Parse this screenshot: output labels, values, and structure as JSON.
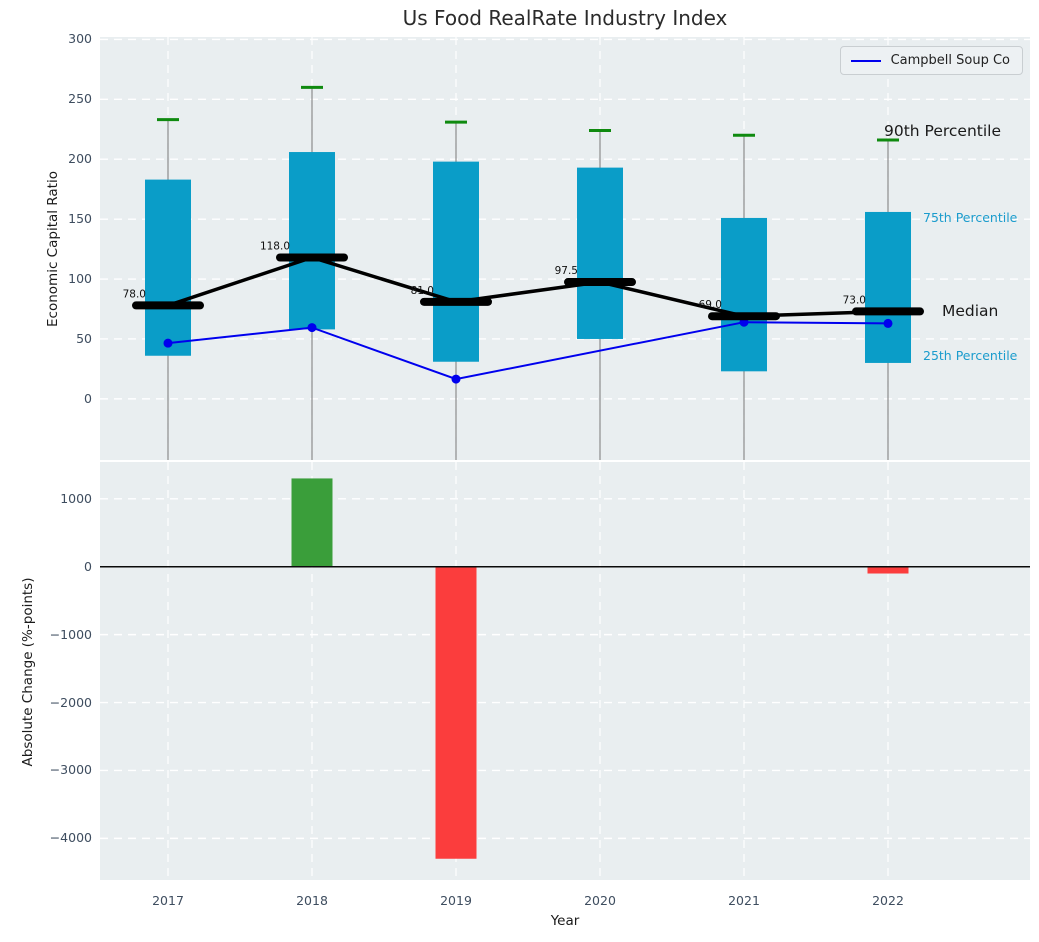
{
  "title": "Us Food RealRate Industry Index",
  "xlabel": "Year",
  "legend": {
    "label": "Campbell Soup Co"
  },
  "annotations": {
    "p90": "90th Percentile",
    "p75": "75th Percentile",
    "median": "Median",
    "p25": "25th Percentile"
  },
  "colors": {
    "box": "#0a9dc8",
    "cap": "#0f8a0f",
    "median": "#000000",
    "campbell": "#0000ee",
    "whisker": "#8c8c8c",
    "grid": "#ffffff",
    "bar_positive": "#3a9e3a",
    "bar_negative": "#fb3d3d",
    "zero_line": "#0a0a0a",
    "tick_text": "#3e4d5f",
    "annotation_cyan": "#1b9ccd"
  },
  "chart_data": [
    {
      "type": "box-line",
      "title": "Us Food RealRate Industry Index",
      "ylabel": "Economic Capital Ratio",
      "categories": [
        "2017",
        "2018",
        "2019",
        "2020",
        "2021",
        "2022"
      ],
      "ylim": [
        -51,
        302
      ],
      "grid": true,
      "legend_position": "upper right",
      "series": [
        {
          "name": "90th Percentile",
          "values": [
            233,
            260,
            231,
            224,
            220,
            216
          ]
        },
        {
          "name": "75th Percentile",
          "values": [
            183,
            206,
            198,
            193,
            151,
            156
          ]
        },
        {
          "name": "Median",
          "values": [
            78.0,
            118.0,
            81.0,
            97.5,
            69.0,
            73.0
          ]
        },
        {
          "name": "25th Percentile",
          "values": [
            36,
            58,
            31,
            50,
            23,
            30
          ]
        },
        {
          "name": "Campbell Soup Co",
          "values": [
            46.5,
            59.5,
            16.5,
            null,
            64.0,
            63.0
          ]
        }
      ],
      "median_labels": [
        "78.0",
        "118.0",
        "81.0",
        "97.5",
        "69.0",
        "73.0"
      ],
      "yticks": [
        {
          "v": 300,
          "label": "300"
        },
        {
          "v": 250,
          "label": "250"
        },
        {
          "v": 200,
          "label": "200"
        },
        {
          "v": 150,
          "label": "150"
        },
        {
          "v": 100,
          "label": "100"
        },
        {
          "v": 50,
          "label": "50"
        },
        {
          "v": 0,
          "label": "0"
        }
      ]
    },
    {
      "type": "bar",
      "ylabel": "Absolute Change (%-points)",
      "categories": [
        "2017",
        "2018",
        "2019",
        "2020",
        "2021",
        "2022"
      ],
      "values": [
        null,
        1300,
        -4300,
        null,
        null,
        -100
      ],
      "ylim": [
        -4613,
        1542
      ],
      "grid": true,
      "yticks": [
        {
          "v": 1000,
          "label": "1000"
        },
        {
          "v": 0,
          "label": "0"
        },
        {
          "v": -1000,
          "label": "−1000"
        },
        {
          "v": -2000,
          "label": "−2000"
        },
        {
          "v": -3000,
          "label": "−3000"
        },
        {
          "v": -4000,
          "label": "−4000"
        }
      ]
    }
  ]
}
